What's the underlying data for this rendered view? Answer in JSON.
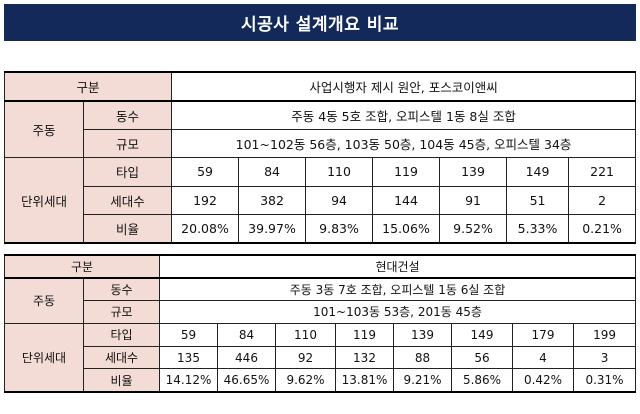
{
  "title": "시공사 설계개요 비교",
  "table1": {
    "header_label": "구분",
    "company": "사업시행자 제시 원안, 포스코이앤씨",
    "group_main": "주동",
    "group_unit": "단위세대",
    "row_dongsu_label": "동수",
    "row_dongsu_value": "주동 4동 5호 조합, 오피스텔 1동 8실 조합",
    "row_gyumo_label": "규모",
    "row_gyumo_value": "101~102동 56층, 103동 50층, 104동 45층, 오피스텔 34층",
    "row_type_label": "타입",
    "types": [
      "59",
      "84",
      "110",
      "119",
      "139",
      "149",
      "221"
    ],
    "row_households_label": "세대수",
    "households": [
      "192",
      "382",
      "94",
      "144",
      "91",
      "51",
      "2"
    ],
    "row_ratio_label": "비율",
    "ratios": [
      "20.08%",
      "39.97%",
      "9.83%",
      "15.06%",
      "9.52%",
      "5.33%",
      "0.21%"
    ]
  },
  "table2": {
    "header_label": "구분",
    "company": "현대건설",
    "group_main": "주동",
    "group_unit": "단위세대",
    "row_dongsu_label": "동수",
    "row_dongsu_value": "주동 3동 7호 조합, 오피스텔 1동 6실 조합",
    "row_gyumo_label": "규모",
    "row_gyumo_value": "101~103동 53층, 201동 45층",
    "row_type_label": "타입",
    "types": [
      "59",
      "84",
      "110",
      "119",
      "139",
      "149",
      "179",
      "199"
    ],
    "row_households_label": "세대수",
    "households": [
      "135",
      "446",
      "92",
      "132",
      "88",
      "56",
      "4",
      "3"
    ],
    "row_ratio_label": "비율",
    "ratios": [
      "14.12%",
      "46.65%",
      "9.62%",
      "13.81%",
      "9.21%",
      "5.86%",
      "0.42%",
      "0.31%"
    ]
  },
  "colors": {
    "title_bg": "#13295a",
    "label_bg": "#f4dcd6"
  }
}
